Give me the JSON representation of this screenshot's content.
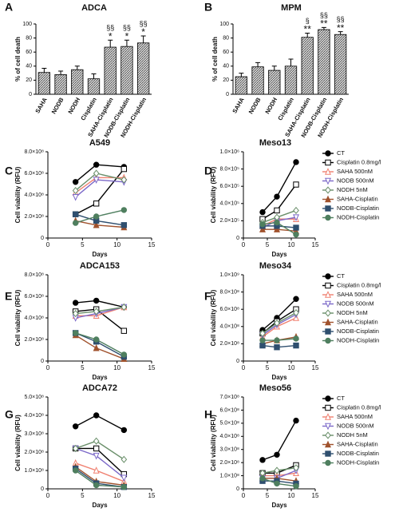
{
  "chart_data": [
    {
      "type": "bar",
      "panel": "A",
      "title": "ADCA",
      "ylabel": "% of cell death",
      "color": "#444444",
      "categories": [
        "SAHA",
        "NODB",
        "NODH",
        "Cisplatin",
        "SAHA-Cisplatin",
        "NODB-Cisplatin",
        "NODH-Cisplatin"
      ],
      "values": [
        31,
        28,
        35,
        22,
        67,
        68,
        73
      ],
      "errors": [
        6,
        5,
        5,
        7,
        10,
        9,
        10
      ],
      "annotations": [
        null,
        null,
        null,
        null,
        "*",
        "*",
        "*"
      ],
      "annotations_top": [
        null,
        null,
        null,
        null,
        "§§",
        "§§",
        "§§"
      ],
      "ylim": [
        0,
        100
      ],
      "yticks": [
        0,
        20,
        40,
        60,
        80,
        100
      ]
    },
    {
      "type": "bar",
      "panel": "B",
      "title": "MPM",
      "ylabel": "% of cell death",
      "color": "#444444",
      "categories": [
        "SAHA",
        "NODB",
        "NODH",
        "Cisplatin",
        "SAHA-Cisplatin",
        "NODB-Cisplatin",
        "NODH-Cisplatin"
      ],
      "values": [
        25,
        39,
        34,
        40,
        81,
        92,
        85
      ],
      "errors": [
        5,
        6,
        6,
        10,
        6,
        3,
        4
      ],
      "annotations": [
        null,
        null,
        null,
        null,
        "**",
        "**",
        "**"
      ],
      "annotations_top": [
        null,
        null,
        null,
        null,
        "§",
        "§§",
        "§§"
      ],
      "ylim": [
        0,
        100
      ],
      "yticks": [
        0,
        20,
        40,
        60,
        80,
        100
      ]
    },
    {
      "type": "line",
      "panel": "C",
      "title": "A549",
      "ylabel": "Cell viability (RFU)",
      "xlabel": "Days",
      "legend": false,
      "x": [
        4,
        7,
        11
      ],
      "xlim": [
        0,
        15
      ],
      "xticks": [
        0,
        5,
        10,
        15
      ],
      "ylim": [
        0,
        800000000
      ],
      "yticks": [
        0,
        {
          "value": 200000000,
          "label": "2.0×10⁸"
        },
        {
          "value": 400000000,
          "label": "4.0×10⁸"
        },
        {
          "value": 600000000,
          "label": "6.0×10⁸"
        },
        {
          "value": 800000000,
          "label": "8.0×10⁸"
        }
      ],
      "series": [
        {
          "color": "#000000",
          "marker": "circle",
          "filled": true,
          "values": [
            520000000,
            680000000,
            660000000
          ]
        },
        {
          "color": "#000000",
          "marker": "square",
          "filled": false,
          "values": [
            220000000,
            320000000,
            640000000
          ]
        },
        {
          "color": "#f08070",
          "marker": "triangle-up",
          "filled": false,
          "values": [
            420000000,
            560000000,
            560000000
          ]
        },
        {
          "color": "#7b68c8",
          "marker": "triangle-down",
          "filled": false,
          "values": [
            380000000,
            540000000,
            520000000
          ]
        },
        {
          "color": "#6a8f6a",
          "marker": "diamond",
          "filled": false,
          "values": [
            440000000,
            600000000,
            540000000
          ]
        },
        {
          "color": "#a0522d",
          "marker": "triangle-up",
          "filled": true,
          "values": [
            160000000,
            120000000,
            100000000
          ]
        },
        {
          "color": "#2f4f6f",
          "marker": "square",
          "filled": true,
          "values": [
            220000000,
            160000000,
            120000000
          ]
        },
        {
          "color": "#4f7f5f",
          "marker": "circle",
          "filled": true,
          "values": [
            140000000,
            200000000,
            260000000
          ]
        }
      ]
    },
    {
      "type": "line",
      "panel": "D",
      "title": "Meso13",
      "ylabel": "Cell viability (RFU)",
      "xlabel": "Days",
      "legend": true,
      "x": [
        4,
        7,
        11
      ],
      "xlim": [
        0,
        15
      ],
      "xticks": [
        0,
        5,
        10,
        15
      ],
      "ylim": [
        0,
        1000000
      ],
      "yticks": [
        0,
        {
          "value": 200000,
          "label": "2.0×10⁵"
        },
        {
          "value": 400000,
          "label": "4.0×10⁵"
        },
        {
          "value": 600000,
          "label": "6.0×10⁵"
        },
        {
          "value": 800000,
          "label": "8.0×10⁵"
        },
        {
          "value": 1000000,
          "label": "1.0×10⁶"
        }
      ],
      "series": [
        {
          "name": "CT",
          "color": "#000000",
          "marker": "circle",
          "filled": true,
          "values": [
            300000,
            480000,
            880000
          ]
        },
        {
          "name": "Cisplatin 0.8mg/l",
          "color": "#000000",
          "marker": "square",
          "filled": false,
          "values": [
            220000,
            320000,
            620000
          ]
        },
        {
          "name": "SAHA 500nM",
          "color": "#f08070",
          "marker": "triangle-up",
          "filled": false,
          "values": [
            140000,
            220000,
            220000
          ]
        },
        {
          "name": "NODB 500nM",
          "color": "#7b68c8",
          "marker": "triangle-down",
          "filled": false,
          "values": [
            120000,
            200000,
            240000
          ]
        },
        {
          "name": "NODH 5nM",
          "color": "#6a8f6a",
          "marker": "diamond",
          "filled": false,
          "values": [
            180000,
            240000,
            320000
          ]
        },
        {
          "name": "SAHA-Cisplatin",
          "color": "#a0522d",
          "marker": "triangle-up",
          "filled": true,
          "values": [
            100000,
            100000,
            80000
          ]
        },
        {
          "name": "NODB-Cisplatin",
          "color": "#2f4f6f",
          "marker": "square",
          "filled": true,
          "values": [
            140000,
            140000,
            120000
          ]
        },
        {
          "name": "NODH-Cisplatin",
          "color": "#4f7f5f",
          "marker": "circle",
          "filled": true,
          "values": [
            160000,
            180000,
            40000
          ]
        }
      ]
    },
    {
      "type": "line",
      "panel": "E",
      "title": "ADCA153",
      "ylabel": "Cell viability (RFU)",
      "xlabel": "Days",
      "legend": false,
      "x": [
        4,
        7,
        11
      ],
      "xlim": [
        0,
        15
      ],
      "xticks": [
        0,
        5,
        10,
        15
      ],
      "ylim": [
        0,
        800000000
      ],
      "yticks": [
        0,
        {
          "value": 200000000,
          "label": "2.0×10⁸"
        },
        {
          "value": 400000000,
          "label": "4.0×10⁸"
        },
        {
          "value": 600000000,
          "label": "6.0×10⁸"
        },
        {
          "value": 800000000,
          "label": "8.0×10⁸"
        }
      ],
      "series": [
        {
          "color": "#000000",
          "marker": "circle",
          "filled": true,
          "values": [
            540000000,
            560000000,
            500000000
          ]
        },
        {
          "color": "#000000",
          "marker": "square",
          "filled": false,
          "values": [
            460000000,
            480000000,
            280000000
          ]
        },
        {
          "color": "#f08070",
          "marker": "triangle-up",
          "filled": false,
          "values": [
            420000000,
            420000000,
            500000000
          ]
        },
        {
          "color": "#7b68c8",
          "marker": "triangle-down",
          "filled": false,
          "values": [
            400000000,
            440000000,
            500000000
          ]
        },
        {
          "color": "#6a8f6a",
          "marker": "diamond",
          "filled": false,
          "values": [
            440000000,
            460000000,
            500000000
          ]
        },
        {
          "color": "#a0522d",
          "marker": "triangle-up",
          "filled": true,
          "values": [
            240000000,
            120000000,
            20000000
          ]
        },
        {
          "color": "#2f4f6f",
          "marker": "square",
          "filled": true,
          "values": [
            260000000,
            180000000,
            40000000
          ]
        },
        {
          "color": "#4f7f5f",
          "marker": "circle",
          "filled": true,
          "values": [
            260000000,
            200000000,
            60000000
          ]
        }
      ]
    },
    {
      "type": "line",
      "panel": "F",
      "title": "Meso34",
      "ylabel": "Cell viability (RFU)",
      "xlabel": "Days",
      "legend": true,
      "x": [
        4,
        7,
        11
      ],
      "xlim": [
        0,
        15
      ],
      "xticks": [
        0,
        5,
        10,
        15
      ],
      "ylim": [
        0,
        1000000000
      ],
      "yticks": [
        0,
        {
          "value": 200000000,
          "label": "2.0×10⁸"
        },
        {
          "value": 400000000,
          "label": "4.0×10⁸"
        },
        {
          "value": 600000000,
          "label": "6.0×10⁸"
        },
        {
          "value": 800000000,
          "label": "8.0×10⁸"
        },
        {
          "value": 1000000000,
          "label": "1.0×10⁹"
        }
      ],
      "series": [
        {
          "name": "CT",
          "color": "#000000",
          "marker": "circle",
          "filled": true,
          "values": [
            360000000,
            500000000,
            720000000
          ]
        },
        {
          "name": "Cisplatin 0.8mg/l",
          "color": "#000000",
          "marker": "square",
          "filled": false,
          "values": [
            320000000,
            460000000,
            600000000
          ]
        },
        {
          "name": "SAHA 500nM",
          "color": "#f08070",
          "marker": "triangle-up",
          "filled": false,
          "values": [
            280000000,
            400000000,
            500000000
          ]
        },
        {
          "name": "NODB 500nM",
          "color": "#7b68c8",
          "marker": "triangle-down",
          "filled": false,
          "values": [
            300000000,
            420000000,
            540000000
          ]
        },
        {
          "name": "NODH 5nM",
          "color": "#6a8f6a",
          "marker": "diamond",
          "filled": false,
          "values": [
            320000000,
            440000000,
            560000000
          ]
        },
        {
          "name": "SAHA-Cisplatin",
          "color": "#a0522d",
          "marker": "triangle-up",
          "filled": true,
          "values": [
            200000000,
            240000000,
            280000000
          ]
        },
        {
          "name": "NODB-Cisplatin",
          "color": "#2f4f6f",
          "marker": "square",
          "filled": true,
          "values": [
            180000000,
            160000000,
            180000000
          ]
        },
        {
          "name": "NODH-Cisplatin",
          "color": "#4f7f5f",
          "marker": "circle",
          "filled": true,
          "values": [
            240000000,
            240000000,
            260000000
          ]
        }
      ]
    },
    {
      "type": "line",
      "panel": "G",
      "title": "ADCA72",
      "ylabel": "Cell viability (RFU)",
      "xlabel": "Days",
      "legend": false,
      "x": [
        4,
        7,
        11
      ],
      "xlim": [
        0,
        15
      ],
      "xticks": [
        0,
        5,
        10,
        15
      ],
      "ylim": [
        0,
        500000000
      ],
      "yticks": [
        0,
        {
          "value": 100000000,
          "label": "1.0×10⁸"
        },
        {
          "value": 200000000,
          "label": "2.0×10⁸"
        },
        {
          "value": 300000000,
          "label": "3.0×10⁸"
        },
        {
          "value": 400000000,
          "label": "4.0×10⁸"
        },
        {
          "value": 500000000,
          "label": "5.0×10⁸"
        }
      ],
      "series": [
        {
          "color": "#000000",
          "marker": "circle",
          "filled": true,
          "values": [
            340000000,
            400000000,
            320000000
          ]
        },
        {
          "color": "#000000",
          "marker": "square",
          "filled": false,
          "values": [
            220000000,
            220000000,
            80000000
          ]
        },
        {
          "color": "#f08070",
          "marker": "triangle-up",
          "filled": false,
          "values": [
            140000000,
            100000000,
            40000000
          ]
        },
        {
          "color": "#7b68c8",
          "marker": "triangle-down",
          "filled": false,
          "values": [
            220000000,
            180000000,
            60000000
          ]
        },
        {
          "color": "#6a8f6a",
          "marker": "diamond",
          "filled": false,
          "values": [
            220000000,
            260000000,
            160000000
          ]
        },
        {
          "color": "#a0522d",
          "marker": "triangle-up",
          "filled": true,
          "values": [
            120000000,
            40000000,
            20000000
          ]
        },
        {
          "color": "#2f4f6f",
          "marker": "square",
          "filled": true,
          "values": [
            110000000,
            30000000,
            10000000
          ]
        },
        {
          "color": "#4f7f5f",
          "marker": "circle",
          "filled": true,
          "values": [
            100000000,
            20000000,
            10000000
          ]
        }
      ]
    },
    {
      "type": "line",
      "panel": "H",
      "title": "Meso56",
      "ylabel": "Cell viability (RFU)",
      "xlabel": "Days",
      "legend": true,
      "x": [
        4,
        7,
        11
      ],
      "xlim": [
        0,
        15
      ],
      "xticks": [
        0,
        5,
        10,
        15
      ],
      "ylim": [
        0,
        700000000
      ],
      "yticks": [
        0,
        {
          "value": 100000000,
          "label": "1.0×10⁸"
        },
        {
          "value": 200000000,
          "label": "2.0×10⁸"
        },
        {
          "value": 300000000,
          "label": "3.0×10⁸"
        },
        {
          "value": 400000000,
          "label": "4.0×10⁸"
        },
        {
          "value": 500000000,
          "label": "5.0×10⁸"
        },
        {
          "value": 600000000,
          "label": "6.0×10⁸"
        },
        {
          "value": 700000000,
          "label": "7.0×10⁸"
        }
      ],
      "series": [
        {
          "name": "CT",
          "color": "#000000",
          "marker": "circle",
          "filled": true,
          "values": [
            220000000,
            260000000,
            520000000
          ]
        },
        {
          "name": "Cisplatin 0.8mg/l",
          "color": "#000000",
          "marker": "square",
          "filled": false,
          "values": [
            120000000,
            120000000,
            180000000
          ]
        },
        {
          "name": "SAHA 500nM",
          "color": "#f08070",
          "marker": "triangle-up",
          "filled": false,
          "values": [
            100000000,
            100000000,
            120000000
          ]
        },
        {
          "name": "NODB 500nM",
          "color": "#7b68c8",
          "marker": "triangle-down",
          "filled": false,
          "values": [
            80000000,
            80000000,
            140000000
          ]
        },
        {
          "name": "NODH 5nM",
          "color": "#6a8f6a",
          "marker": "diamond",
          "filled": false,
          "values": [
            120000000,
            140000000,
            160000000
          ]
        },
        {
          "name": "SAHA-Cisplatin",
          "color": "#a0522d",
          "marker": "triangle-up",
          "filled": true,
          "values": [
            80000000,
            80000000,
            60000000
          ]
        },
        {
          "name": "NODB-Cisplatin",
          "color": "#2f4f6f",
          "marker": "square",
          "filled": true,
          "values": [
            60000000,
            60000000,
            40000000
          ]
        },
        {
          "name": "NODH-Cisplatin",
          "color": "#4f7f5f",
          "marker": "circle",
          "filled": true,
          "values": [
            80000000,
            40000000,
            20000000
          ]
        }
      ]
    }
  ]
}
